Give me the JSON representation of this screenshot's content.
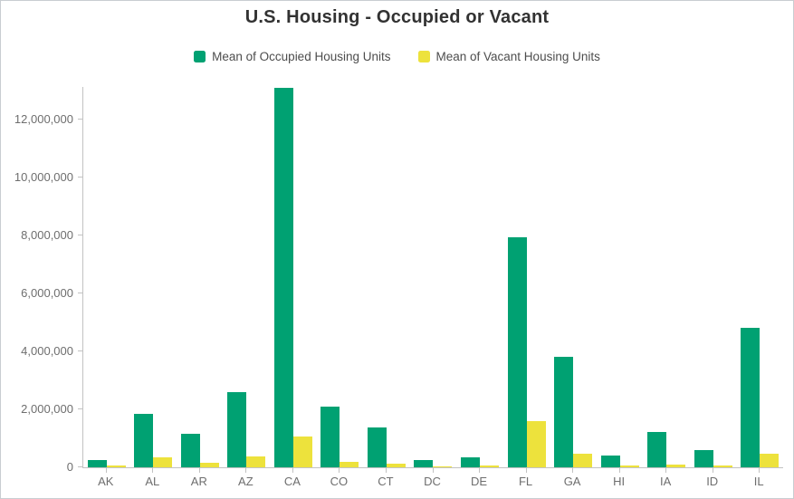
{
  "window": {
    "title": "U.S. Housing - Occupied or Vacant"
  },
  "chart_data": {
    "type": "bar",
    "title": "U.S. Housing - Occupied or Vacant",
    "xlabel": "",
    "ylabel": "",
    "grid": false,
    "legend_position": "top-center",
    "ylim": [
      0,
      13125000
    ],
    "y_tick_step": 2000000,
    "y_ticks": [
      0,
      2000000,
      4000000,
      6000000,
      8000000,
      10000000,
      12000000
    ],
    "categories": [
      "AK",
      "AL",
      "AR",
      "AZ",
      "CA",
      "CO",
      "CT",
      "DC",
      "DE",
      "FL",
      "GA",
      "HI",
      "IA",
      "ID",
      "IL"
    ],
    "series": [
      {
        "name": "Mean of Occupied Housing Units",
        "color": "#00a172",
        "values": [
          240000,
          1850000,
          1150000,
          2600000,
          13100000,
          2100000,
          1370000,
          250000,
          330000,
          7950000,
          3800000,
          420000,
          1220000,
          600000,
          4820000
        ]
      },
      {
        "name": "Mean of Vacant Housing Units",
        "color": "#ede23c",
        "values": [
          60000,
          350000,
          170000,
          360000,
          1070000,
          190000,
          120000,
          30000,
          65000,
          1600000,
          460000,
          55000,
          95000,
          60000,
          480000
        ]
      }
    ]
  },
  "colors": {
    "occupied": "#00a172",
    "vacant": "#ede23c",
    "title_text": "#323232",
    "legend_text": "#4d4d4d",
    "axis_text": "#6e6e6e",
    "axis_line": "#c2c2c2",
    "frame_border": "#c9cdd1",
    "background": "#ffffff"
  }
}
